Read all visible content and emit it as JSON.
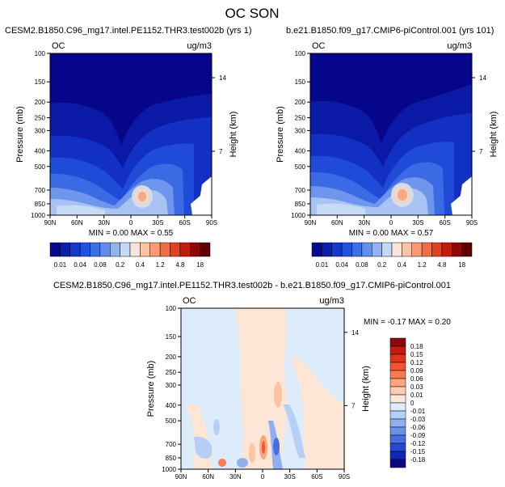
{
  "chart_data": {
    "type": "contour",
    "title": "OC SON",
    "panels": [
      {
        "id": "case",
        "title": "CESM2.B1850.C96_mg17.intel.PE1152.THR3.test002b (yrs 1)",
        "variable": "OC",
        "units": "ug/m3",
        "ylabel": "Pressure (mb)",
        "ylabel_right": "Height (km)",
        "xticks": [
          "90N",
          "60N",
          "30N",
          "0",
          "30S",
          "60S",
          "90S"
        ],
        "yticks": [
          "100",
          "150",
          "200",
          "250",
          "300",
          "400",
          "500",
          "700",
          "850",
          "1000"
        ],
        "height_ticks": [
          "14",
          "7"
        ],
        "stats": "MIN =   0.00   MAX =   0.55",
        "min": 0.0,
        "max": 0.55
      },
      {
        "id": "control",
        "title": "b.e21.B1850.f09_g17.CMIP6-piControl.001 (yrs 101)",
        "variable": "OC",
        "units": "ug/m3",
        "ylabel": "Pressure (mb)",
        "ylabel_right": "Height (km)",
        "xticks": [
          "90N",
          "60N",
          "30N",
          "0",
          "30S",
          "60S",
          "90S"
        ],
        "yticks": [
          "100",
          "150",
          "200",
          "250",
          "300",
          "400",
          "500",
          "700",
          "850",
          "1000"
        ],
        "height_ticks": [
          "14",
          "7"
        ],
        "stats": "MIN =   0.00   MAX =   0.57",
        "min": 0.0,
        "max": 0.57
      },
      {
        "id": "diff",
        "title": "CESM2.B1850.C96_mg17.intel.PE1152.THR3.test002b - b.e21.B1850.f09_g17.CMIP6-piControl.001",
        "variable": "OC",
        "units": "ug/m3",
        "ylabel": "Pressure (mb)",
        "ylabel_right": "Height (km)",
        "xticks": [
          "90N",
          "60N",
          "30N",
          "0",
          "30S",
          "60S",
          "90S"
        ],
        "yticks": [
          "100",
          "150",
          "200",
          "250",
          "300",
          "400",
          "500",
          "700",
          "850",
          "1000"
        ],
        "height_ticks": [
          "14",
          "7"
        ],
        "stats": "MIN = -0.17   MAX =   0.20",
        "min": -0.17,
        "max": 0.2
      }
    ],
    "abs_colorbar": {
      "labels": [
        "0.01",
        "0.04",
        "0.08",
        "0.2",
        "0.4",
        "1.2",
        "4.8",
        "18"
      ],
      "levels": [
        0.01,
        0.02,
        0.04,
        0.06,
        0.08,
        0.1,
        0.2,
        0.3,
        0.4,
        0.8,
        1.2,
        2.4,
        4.8,
        9.6,
        18
      ],
      "colors": [
        "#08088c",
        "#0a1fb0",
        "#1238cf",
        "#1f52de",
        "#3a6fe6",
        "#5f8fee",
        "#8fb3f3",
        "#c4d8f8",
        "#f8e4d8",
        "#fcc3a5",
        "#fb9a72",
        "#f56b44",
        "#e3401f",
        "#c01b0f",
        "#8f0707",
        "#5e0000"
      ]
    },
    "diff_colorbar": {
      "labels": [
        "0.18",
        "0.15",
        "0.12",
        "0.09",
        "0.06",
        "0.03",
        "0.01",
        "0",
        "-0.01",
        "-0.03",
        "-0.06",
        "-0.09",
        "-0.12",
        "-0.15",
        "-0.18"
      ],
      "colors": [
        "#8c0a0a",
        "#c41a14",
        "#e2321c",
        "#f25530",
        "#fb7a52",
        "#fca57f",
        "#fdcbb0",
        "#fde6d6",
        "#ddecfb",
        "#b6cff6",
        "#8faff0",
        "#6a90ea",
        "#4670e2",
        "#2448d4",
        "#1125b8",
        "#0a0a80"
      ]
    }
  }
}
